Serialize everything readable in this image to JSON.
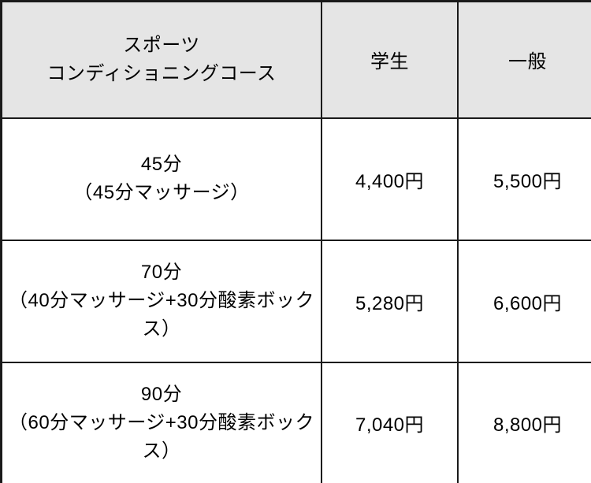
{
  "pricing_table": {
    "header": {
      "course_title_line1": "スポーツ",
      "course_title_line2": "コンディショニングコース",
      "student_label": "学生",
      "general_label": "一般"
    },
    "rows": [
      {
        "duration": "45分",
        "composition": "（45分マッサージ）",
        "student_price": "4,400円",
        "general_price": "5,500円"
      },
      {
        "duration": "70分",
        "composition": "（40分マッサージ+30分酸素ボックス）",
        "student_price": "5,280円",
        "general_price": "6,600円"
      },
      {
        "duration": "90分",
        "composition": "（60分マッサージ+30分酸素ボックス）",
        "student_price": "7,040円",
        "general_price": "8,800円"
      }
    ],
    "colors": {
      "header_background": "#e5e5e5",
      "border": "#1a1a1a",
      "text": "#000000"
    }
  }
}
